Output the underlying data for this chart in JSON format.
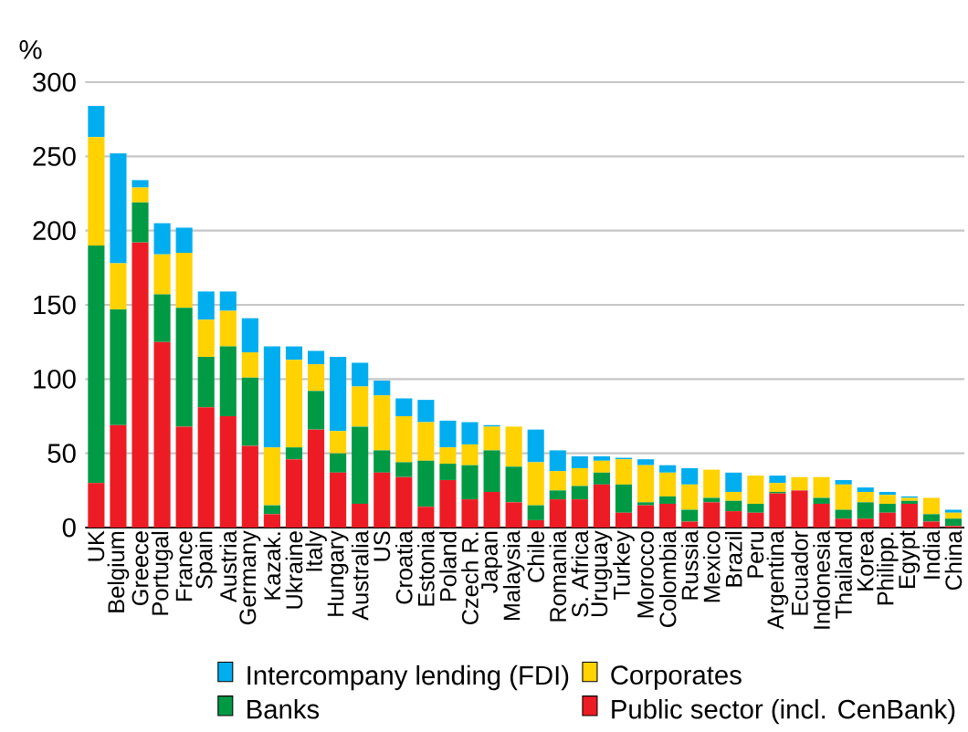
{
  "chart_data": {
    "type": "bar",
    "stacked": true,
    "ylabel": "%",
    "categories": [
      "UK",
      "Belgium",
      "Greece",
      "Portugal",
      "France",
      "Spain",
      "Austria",
      "Germany",
      "Kazak.",
      "Ukraine",
      "Italy",
      "Hungary",
      "Australia",
      "US",
      "Croatia",
      "Estonia",
      "Poland",
      "Czech R.",
      "Japan",
      "Malaysia",
      "Chile",
      "Romania",
      "S. Africa",
      "Uruguay",
      "Turkey",
      "Morocco",
      "Colombia",
      "Russia",
      "Mexico",
      "Brazil",
      "Peru",
      "Argentina",
      "Ecuador",
      "Indonesia",
      "Thailand",
      "Korea",
      "Philipp.",
      "Egypt",
      "India",
      "China"
    ],
    "series": [
      {
        "name": "Public sector (incl. CenBank)",
        "color": "#ed1c24",
        "values": [
          30,
          69,
          192,
          125,
          68,
          81,
          75,
          55,
          9,
          46,
          66,
          37,
          16,
          37,
          34,
          14,
          32,
          19,
          24,
          17,
          5,
          19,
          19,
          29,
          10,
          15,
          16,
          4,
          17,
          11,
          10,
          23,
          25,
          16,
          6,
          6,
          10,
          16,
          4,
          1
        ]
      },
      {
        "name": "Banks",
        "color": "#009a44",
        "values": [
          160,
          78,
          27,
          32,
          80,
          34,
          47,
          46,
          6,
          8,
          26,
          13,
          52,
          15,
          10,
          31,
          11,
          23,
          28,
          24,
          10,
          6,
          9,
          8,
          19,
          2,
          5,
          8,
          3,
          7,
          6,
          1,
          0,
          4,
          6,
          11,
          6,
          2,
          5,
          5
        ]
      },
      {
        "name": "Corporates",
        "color": "#ffd200",
        "values": [
          73,
          31,
          10,
          27,
          37,
          25,
          24,
          17,
          39,
          59,
          18,
          15,
          27,
          37,
          31,
          26,
          11,
          14,
          16,
          27,
          29,
          13,
          12,
          8,
          17,
          25,
          16,
          17,
          19,
          6,
          19,
          6,
          9,
          14,
          17,
          7,
          6,
          2,
          11,
          4
        ]
      },
      {
        "name": "Intercompany lending (FDI)",
        "color": "#00aeef",
        "values": [
          21,
          74,
          5,
          21,
          17,
          19,
          13,
          23,
          68,
          9,
          9,
          50,
          16,
          10,
          12,
          15,
          18,
          15,
          1,
          0,
          22,
          14,
          8,
          3,
          1,
          4,
          5,
          11,
          0,
          13,
          0,
          5,
          0,
          0,
          3,
          3,
          2,
          1,
          0,
          2
        ]
      }
    ],
    "ylim": [
      0,
      300
    ],
    "yticks": [
      0,
      50,
      100,
      150,
      200,
      250,
      300
    ],
    "grid": "y",
    "legend": "bottom"
  }
}
